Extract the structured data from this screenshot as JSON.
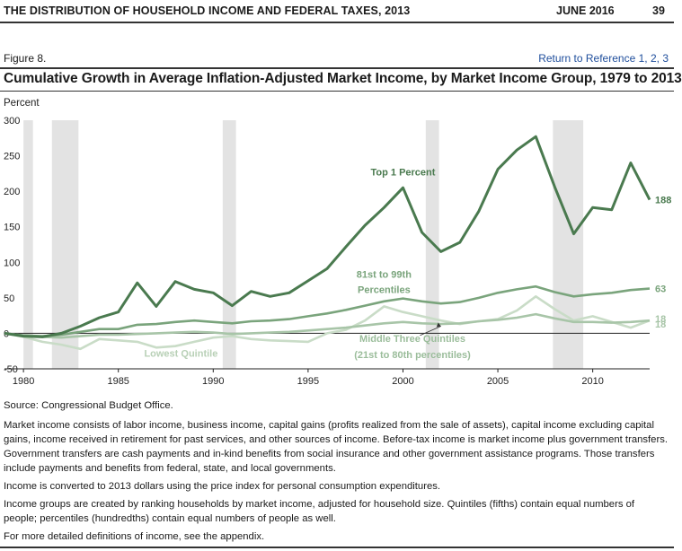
{
  "header": {
    "title": "THE DISTRIBUTION OF HOUSEHOLD INCOME AND FEDERAL TAXES, 2013",
    "date": "JUNE 2016",
    "page": "39"
  },
  "figure": {
    "label": "Figure 8.",
    "return_prefix": "Return to Reference ",
    "return_links": [
      "1",
      "2",
      "3"
    ]
  },
  "notes": {
    "source": "Source: Congressional Budget Office.",
    "p1": "Market income consists of labor income, business income, capital gains (profits realized from the sale of assets), capital income excluding capital gains, income received in retirement for past services, and other sources of income. Before-tax income is market income plus government transfers. Government transfers are cash payments and in-kind benefits from social insurance and other government assistance programs. Those transfers include payments and benefits from federal, state, and local governments.",
    "p2": "Income is converted to 2013 dollars using the price index for personal consumption expenditures.",
    "p3": "Income groups are created by ranking households by market income, adjusted for household size. Quintiles (fifths) contain equal numbers of people; percentiles (hundredths) contain equal numbers of people as well.",
    "p4": "For more detailed definitions of income, see the appendix."
  },
  "chart_data": {
    "type": "line",
    "title": "Cumulative Growth in Average Inflation-Adjusted Market Income, by Market Income Group, 1979 to 2013",
    "ylabel": "Percent",
    "xlabel": "",
    "xlim": [
      1979,
      2013
    ],
    "ylim": [
      -50,
      300
    ],
    "yticks": [
      -50,
      0,
      50,
      100,
      150,
      200,
      250,
      300
    ],
    "xticks": [
      1980,
      1985,
      1990,
      1995,
      2000,
      2005,
      2010
    ],
    "grid": false,
    "recession_shading": [
      [
        1980.0,
        1980.5
      ],
      [
        1981.5,
        1982.9
      ],
      [
        1990.5,
        1991.2
      ],
      [
        2001.2,
        2001.9
      ],
      [
        2007.9,
        2009.5
      ]
    ],
    "x": [
      1979,
      1980,
      1981,
      1982,
      1983,
      1984,
      1985,
      1986,
      1987,
      1988,
      1989,
      1990,
      1991,
      1992,
      1993,
      1994,
      1995,
      1996,
      1997,
      1998,
      1999,
      2000,
      2001,
      2002,
      2003,
      2004,
      2005,
      2006,
      2007,
      2008,
      2009,
      2010,
      2011,
      2012,
      2013
    ],
    "series": [
      {
        "name": "Top 1 Percent",
        "color": "#4a7a4f",
        "values": [
          0,
          -4,
          -5,
          0,
          10,
          22,
          30,
          71,
          38,
          73,
          62,
          57,
          39,
          59,
          52,
          57,
          74,
          91,
          122,
          152,
          177,
          205,
          142,
          115,
          128,
          172,
          231,
          258,
          277,
          206,
          140,
          177,
          174,
          240,
          188
        ]
      },
      {
        "name": "81st to 99th Percentiles",
        "color": "#7aa47c",
        "values": [
          0,
          -3,
          -4,
          -2,
          2,
          6,
          6,
          12,
          13,
          16,
          18,
          16,
          14,
          17,
          18,
          20,
          24,
          28,
          33,
          39,
          45,
          49,
          45,
          42,
          44,
          50,
          57,
          62,
          66,
          58,
          52,
          55,
          57,
          61,
          63
        ]
      },
      {
        "name": "Middle Three Quintiles (21st to 80th percentiles)",
        "color": "#a8c5a8",
        "values": [
          0,
          -3,
          -5,
          -6,
          -4,
          -2,
          -2,
          -1,
          0,
          1,
          2,
          1,
          -1,
          0,
          1,
          2,
          4,
          6,
          8,
          11,
          14,
          16,
          14,
          13,
          14,
          17,
          19,
          22,
          27,
          21,
          16,
          16,
          15,
          16,
          18
        ]
      },
      {
        "name": "Lowest Quintile",
        "color": "#c9dcc7",
        "values": [
          0,
          -5,
          -12,
          -16,
          -22,
          -8,
          -10,
          -12,
          -20,
          -18,
          -12,
          -6,
          -4,
          -8,
          -10,
          -11,
          -12,
          0,
          5,
          18,
          38,
          30,
          24,
          18,
          13,
          17,
          20,
          32,
          52,
          34,
          18,
          24,
          16,
          8,
          18
        ]
      }
    ],
    "annotations": [
      {
        "text": "Top 1 Percent"
      },
      {
        "text": "81st to 99th"
      },
      {
        "text": "Percentiles"
      },
      {
        "text": "Middle Three Quintiles"
      },
      {
        "text": "(21st to 80th percentiles)"
      },
      {
        "text": "Lowest Quintile"
      }
    ],
    "end_labels": [
      "188",
      "63",
      "18",
      "18"
    ]
  }
}
